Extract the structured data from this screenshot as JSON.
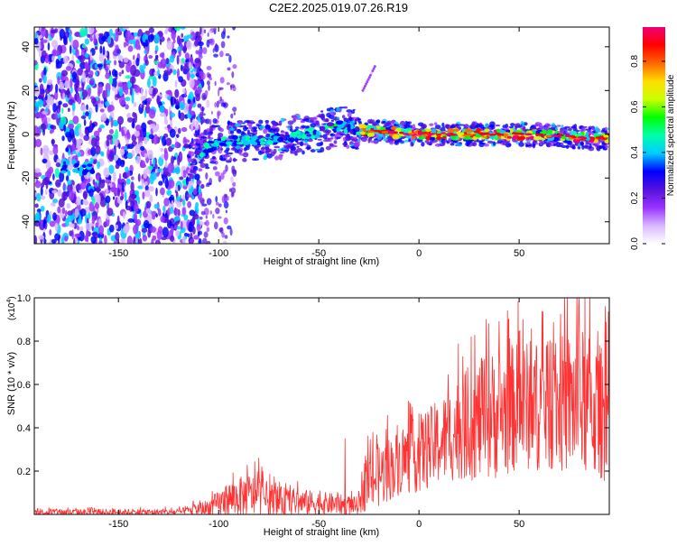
{
  "title": "C2E2.2025.019.07.26.R19",
  "chart_data": [
    {
      "type": "heatmap",
      "title": "C2E2.2025.019.07.26.R19",
      "xlabel": "Height of straight line (km)",
      "ylabel": "Frequency (Hz)",
      "xlim": [
        -192,
        95
      ],
      "ylim": [
        -50,
        49
      ],
      "xticks": [
        -150,
        -100,
        -50,
        0,
        50
      ],
      "yticks": [
        -40,
        -20,
        0,
        20,
        40
      ],
      "colorbar": {
        "label": "Normalized spectral amplitude",
        "range": [
          0,
          0.95
        ],
        "ticks": [
          0.0,
          0.2,
          0.4,
          0.6,
          0.8
        ],
        "colormap": [
          "#ffffff",
          "#d9b8ff",
          "#9933ff",
          "#5511dd",
          "#0000ff",
          "#00ccff",
          "#00ffaa",
          "#00ff00",
          "#ccff00",
          "#ffdd00",
          "#ff6600",
          "#ff0000",
          "#ee0077"
        ]
      },
      "ridge": [
        {
          "x": -192,
          "y": -15
        },
        {
          "x": -170,
          "y": -15
        },
        {
          "x": -115,
          "y": -12
        },
        {
          "x": -105,
          "y": -6
        },
        {
          "x": -100,
          "y": -4
        },
        {
          "x": -90,
          "y": -3
        },
        {
          "x": -70,
          "y": -2
        },
        {
          "x": -50,
          "y": 1
        },
        {
          "x": -40,
          "y": 4
        },
        {
          "x": -30,
          "y": 2
        },
        {
          "x": 0,
          "y": 0
        },
        {
          "x": 50,
          "y": 0
        },
        {
          "x": 95,
          "y": -2
        }
      ],
      "noise_region": {
        "x": [
          -192,
          -108
        ],
        "y": [
          -50,
          49
        ]
      },
      "spur_line": [
        {
          "x": -28,
          "y": 20
        },
        {
          "x": -22,
          "y": 31
        }
      ]
    },
    {
      "type": "line",
      "title": "",
      "xlabel": "Height of straight line (km)",
      "ylabel": "SNR (10 * v/v)",
      "scale_note": "(x10",
      "scale_exp": "4",
      "scale_close": ")",
      "xlim": [
        -192,
        95
      ],
      "ylim": [
        0,
        1.0
      ],
      "xticks": [
        -150,
        -100,
        -50,
        0,
        50
      ],
      "yticks": [
        0.2,
        0.4,
        0.6,
        0.8,
        1.0
      ],
      "series": [
        {
          "name": "SNR",
          "color": "#ff3333",
          "envelope": [
            {
              "x": -192,
              "mean": 0.01,
              "amp": 0.015
            },
            {
              "x": -120,
              "mean": 0.01,
              "amp": 0.015
            },
            {
              "x": -105,
              "mean": 0.03,
              "amp": 0.04
            },
            {
              "x": -95,
              "mean": 0.07,
              "amp": 0.08
            },
            {
              "x": -85,
              "mean": 0.09,
              "amp": 0.1
            },
            {
              "x": -70,
              "mean": 0.06,
              "amp": 0.07
            },
            {
              "x": -45,
              "mean": 0.05,
              "amp": 0.05
            },
            {
              "x": -30,
              "mean": 0.04,
              "amp": 0.04
            },
            {
              "x": -28,
              "mean": 0.13,
              "amp": 0.12
            },
            {
              "x": -20,
              "mean": 0.18,
              "amp": 0.15
            },
            {
              "x": -10,
              "mean": 0.24,
              "amp": 0.15
            },
            {
              "x": 0,
              "mean": 0.28,
              "amp": 0.18
            },
            {
              "x": 10,
              "mean": 0.33,
              "amp": 0.2
            },
            {
              "x": 20,
              "mean": 0.4,
              "amp": 0.24
            },
            {
              "x": 35,
              "mean": 0.45,
              "amp": 0.3
            },
            {
              "x": 50,
              "mean": 0.5,
              "amp": 0.3
            },
            {
              "x": 65,
              "mean": 0.5,
              "amp": 0.3
            },
            {
              "x": 80,
              "mean": 0.52,
              "amp": 0.35
            },
            {
              "x": 95,
              "mean": 0.45,
              "amp": 0.3
            }
          ],
          "peaks": [
            {
              "x": 80,
              "y": 1.0
            },
            {
              "x": 93,
              "y": 0.96
            },
            {
              "x": 35,
              "y": 0.88
            },
            {
              "x": 52,
              "y": 0.9
            },
            {
              "x": 26,
              "y": 0.82
            },
            {
              "x": -80,
              "y": 0.26
            },
            {
              "x": -37,
              "y": 0.35
            }
          ]
        }
      ]
    }
  ]
}
